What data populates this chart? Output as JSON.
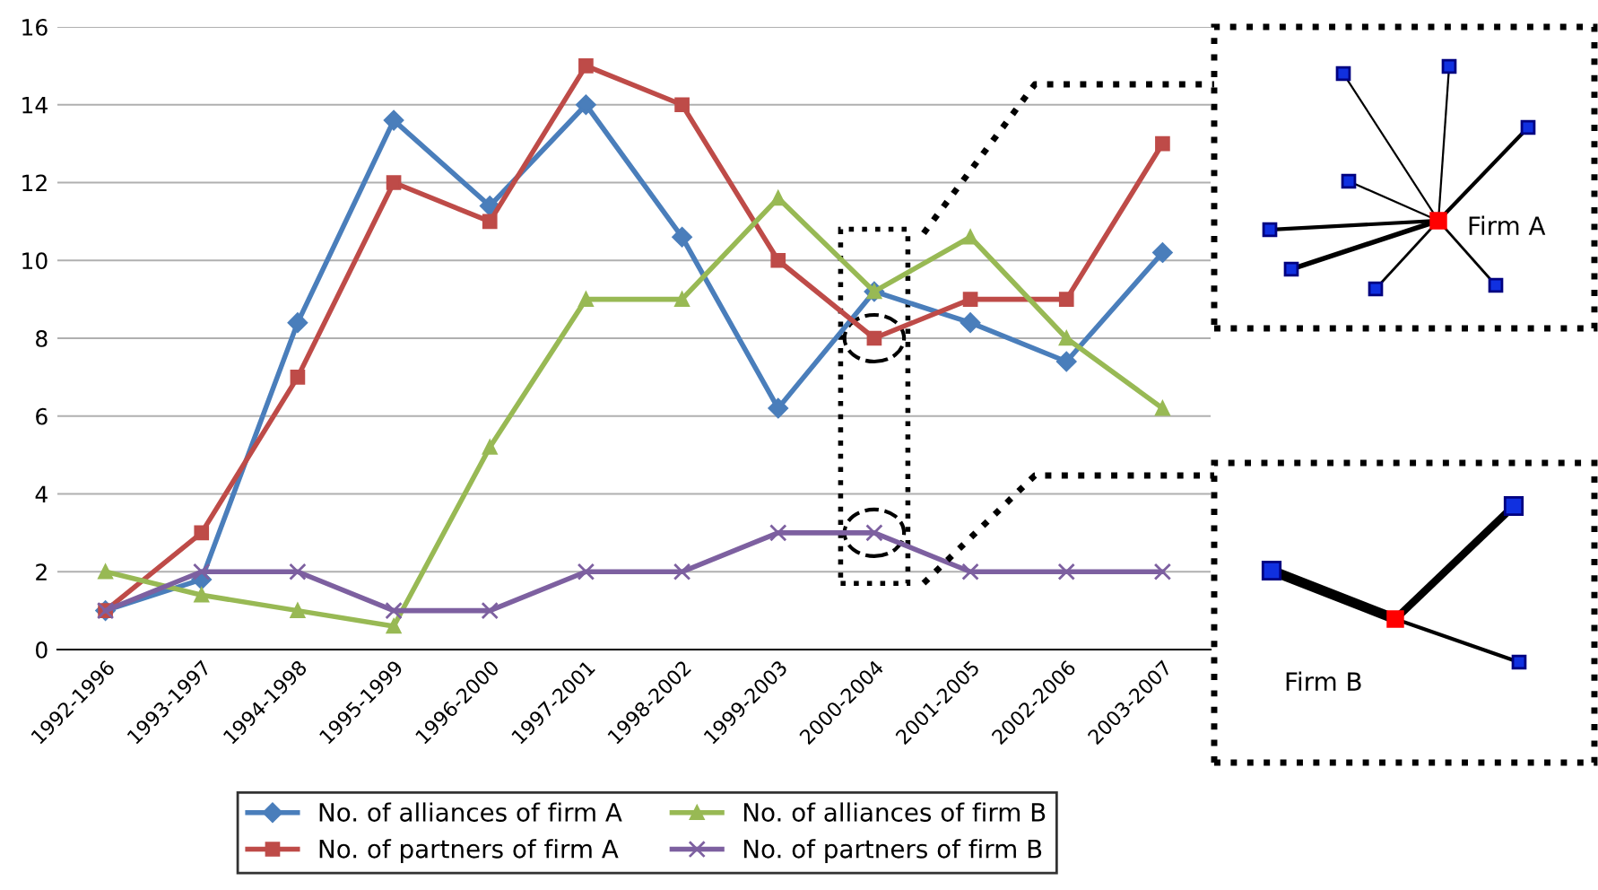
{
  "chart_data": {
    "type": "line",
    "categories": [
      "1992-1996",
      "1993-1997",
      "1994-1998",
      "1995-1999",
      "1996-2000",
      "1997-2001",
      "1998-2002",
      "1999-2003",
      "2000-2004",
      "2001-2005",
      "2002-2006",
      "2003-2007"
    ],
    "series": [
      {
        "name": "No. of alliances of firm A",
        "color": "#4a7ebb",
        "marker": "diamond",
        "values": [
          1,
          1.8,
          8.4,
          13.6,
          11.4,
          14,
          10.6,
          6.2,
          9.2,
          8.4,
          7.4,
          10.2
        ]
      },
      {
        "name": "No. of partners of firm A",
        "color": "#be4b48",
        "marker": "square",
        "values": [
          1,
          3,
          7,
          12,
          11,
          15,
          14,
          10,
          8,
          9,
          9,
          13
        ]
      },
      {
        "name": "No. of alliances of firm B",
        "color": "#98b954",
        "marker": "triangle",
        "values": [
          2,
          1.4,
          1,
          0.6,
          5.2,
          9,
          9,
          11.6,
          9.2,
          10.6,
          8,
          6.2
        ]
      },
      {
        "name": "No. of partners of firm B",
        "color": "#7d60a0",
        "marker": "cross",
        "values": [
          1,
          2,
          2,
          1,
          1,
          2,
          2,
          3,
          3,
          2,
          2,
          2
        ]
      }
    ],
    "ylim": [
      0,
      16
    ],
    "yticks": [
      0,
      2,
      4,
      6,
      8,
      10,
      12,
      14,
      16
    ],
    "grid": "y",
    "legend": "bottom",
    "line_style": "solid",
    "annotations": [
      "Firm A",
      "Firm B"
    ]
  }
}
